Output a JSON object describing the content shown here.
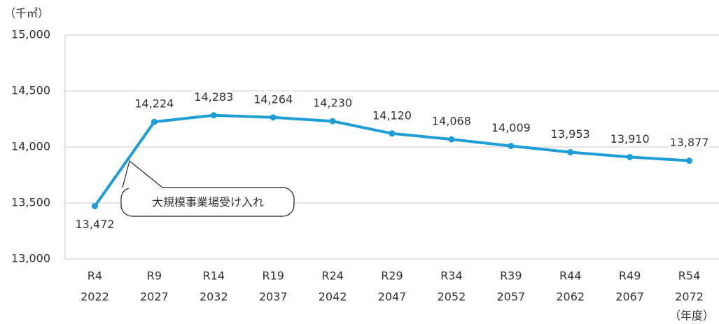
{
  "chart_data": {
    "type": "line",
    "y_unit": "（千㎥）",
    "x_unit": "（年度）",
    "annotation": "大規模事業場受け入れ",
    "categories": [
      [
        "R4",
        "2022"
      ],
      [
        "R9",
        "2027"
      ],
      [
        "R14",
        "2032"
      ],
      [
        "R19",
        "2037"
      ],
      [
        "R24",
        "2042"
      ],
      [
        "R29",
        "2047"
      ],
      [
        "R34",
        "2052"
      ],
      [
        "R39",
        "2057"
      ],
      [
        "R44",
        "2062"
      ],
      [
        "R49",
        "2067"
      ],
      [
        "R54",
        "2072"
      ]
    ],
    "series": [
      {
        "color": "#1f9ed6",
        "values": [
          13472,
          14224,
          14283,
          14264,
          14230,
          14120,
          14068,
          14009,
          13953,
          13910,
          13877
        ],
        "value_labels": [
          "13,472",
          "14,224",
          "14,283",
          "14,264",
          "14,230",
          "14,120",
          "14,068",
          "14,009",
          "13,953",
          "13,910",
          "13,877"
        ]
      }
    ],
    "ylim": [
      13000,
      15000
    ],
    "yticks": [
      {
        "value": 13000,
        "label": "13,000"
      },
      {
        "value": 13500,
        "label": "13,500"
      },
      {
        "value": 14000,
        "label": "14,000"
      },
      {
        "value": 14500,
        "label": "14,500"
      },
      {
        "value": 15000,
        "label": "15,000"
      }
    ],
    "grid": true
  }
}
